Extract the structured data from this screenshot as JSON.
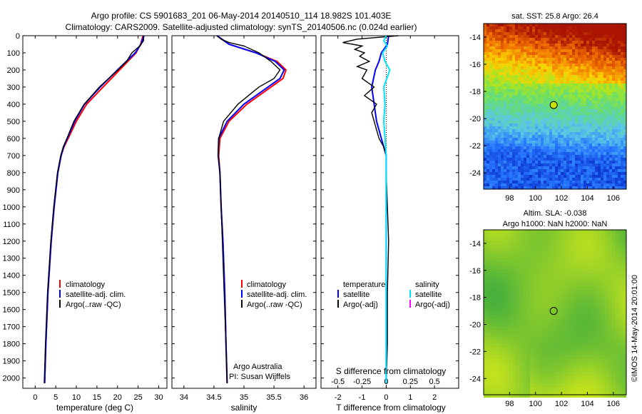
{
  "header": {
    "line1": "Argo profile: CS 5901683_201 06-May-2014 20140510_114 18.982S 101.403E",
    "line2": "Climatology: CARS2009. Satellite-adjusted climatology: synTS_20140506.nc (0.024d earlier)"
  },
  "chart_data": [
    {
      "type": "line",
      "xlabel": "temperature (deg C)",
      "ylabel": "",
      "xlim": [
        -3,
        32
      ],
      "ylim": [
        2060,
        0
      ],
      "xticks": [
        0,
        5,
        10,
        15,
        20,
        25,
        30
      ],
      "yticks": [
        0,
        100,
        200,
        300,
        400,
        500,
        600,
        700,
        800,
        900,
        1000,
        1100,
        1200,
        1300,
        1400,
        1500,
        1600,
        1700,
        1800,
        1900,
        2000
      ],
      "legend": [
        "climatology",
        "satellite-adj. clim.",
        "Argo(..raw -QC)"
      ],
      "series": [
        {
          "name": "climatology",
          "color": "#ff0000",
          "depth": [
            0,
            50,
            100,
            200,
            300,
            400,
            500,
            600,
            650,
            700,
            800,
            1000,
            1200,
            1500,
            1800,
            2030
          ],
          "values": [
            26.2,
            25.6,
            24.5,
            20.5,
            16.5,
            12.5,
            10.0,
            8.0,
            7.0,
            6.3,
            5.5,
            4.6,
            3.9,
            3.1,
            2.6,
            2.3
          ]
        },
        {
          "name": "satellite-adj. clim.",
          "color": "#0000ff",
          "depth": [
            0,
            50,
            100,
            200,
            300,
            400,
            500,
            600,
            650,
            700,
            800,
            1000,
            1200,
            1500,
            1800,
            2030
          ],
          "values": [
            26.4,
            25.7,
            24.3,
            20.0,
            15.8,
            12.0,
            9.6,
            7.8,
            6.9,
            6.3,
            5.5,
            4.6,
            3.9,
            3.1,
            2.6,
            2.3
          ]
        },
        {
          "name": "Argo(..raw -QC)",
          "color": "#000000",
          "depth": [
            0,
            30,
            60,
            100,
            150,
            200,
            300,
            400,
            500,
            600,
            650,
            700,
            800,
            1000,
            1200,
            1500,
            1800,
            2030
          ],
          "values": [
            26.4,
            26.3,
            25.4,
            23.5,
            22.2,
            20.1,
            15.6,
            11.9,
            9.4,
            7.7,
            6.8,
            6.2,
            5.4,
            4.5,
            3.8,
            3.0,
            2.5,
            2.2
          ]
        }
      ]
    },
    {
      "type": "line",
      "xlabel": "salinity",
      "ylabel": "",
      "xlim": [
        33.8,
        36.2
      ],
      "ylim": [
        2060,
        0
      ],
      "xticks": [
        34,
        34.5,
        35,
        35.5,
        36
      ],
      "legend": [
        "climatology",
        "satellite-adj. clim.",
        "Argo(..raw -QC)"
      ],
      "annotations": [
        "Argo Australia",
        "PI: Susan Wijffels"
      ],
      "series": [
        {
          "name": "climatology",
          "color": "#ff0000",
          "depth": [
            0,
            50,
            100,
            150,
            200,
            250,
            300,
            400,
            500,
            600,
            700,
            800,
            1000,
            1200,
            1500,
            1800,
            2030
          ],
          "values": [
            34.55,
            34.75,
            35.2,
            35.55,
            35.7,
            35.65,
            35.45,
            35.05,
            34.75,
            34.6,
            34.58,
            34.6,
            34.62,
            34.65,
            34.68,
            34.7,
            34.72
          ]
        },
        {
          "name": "satellite-adj. clim.",
          "color": "#0000ff",
          "depth": [
            0,
            50,
            100,
            150,
            200,
            250,
            300,
            400,
            500,
            600,
            700,
            800,
            1000,
            1200,
            1500,
            1800,
            2030
          ],
          "values": [
            34.55,
            34.75,
            35.2,
            35.52,
            35.67,
            35.6,
            35.4,
            35.0,
            34.72,
            34.58,
            34.57,
            34.6,
            34.62,
            34.65,
            34.68,
            34.7,
            34.72
          ]
        },
        {
          "name": "Argo(..raw -QC)",
          "color": "#000000",
          "depth": [
            0,
            20,
            40,
            60,
            100,
            150,
            200,
            250,
            300,
            400,
            500,
            600,
            700,
            800,
            1000,
            1200,
            1500,
            1800,
            2030
          ],
          "values": [
            34.55,
            34.62,
            34.75,
            35.0,
            35.25,
            35.45,
            35.6,
            35.5,
            35.25,
            34.9,
            34.66,
            34.58,
            34.57,
            34.6,
            34.62,
            34.64,
            34.67,
            34.7,
            34.72
          ]
        }
      ]
    },
    {
      "type": "line",
      "xlabel": "T difference from climatology",
      "top_xlabel": "S difference from climatology",
      "xlim": [
        -2.7,
        3.0
      ],
      "ylim": [
        2060,
        0
      ],
      "xticks": [
        -2,
        -1,
        0,
        1,
        2
      ],
      "top_xticks_label": [
        "-0.5",
        "-0.25",
        "0",
        "0.25",
        "0.5"
      ],
      "top_xticks_pos": [
        -2,
        -1,
        0,
        1,
        2
      ],
      "legend_left_title": "temperature",
      "legend_right_title": "salinity",
      "legend": [
        "satellite",
        "Argo(-adj)",
        "satellite",
        "Argo(-adj)"
      ],
      "series": [
        {
          "name": "temperature satellite",
          "color": "#0000ff",
          "depth": [
            0,
            50,
            100,
            150,
            200,
            300,
            400,
            500,
            600,
            700,
            800,
            1000,
            1500,
            2030
          ],
          "values": [
            0.1,
            0.05,
            -0.2,
            -0.3,
            -0.45,
            -0.6,
            -0.5,
            -0.4,
            -0.2,
            0.0,
            0.0,
            0.0,
            0.0,
            0.0
          ]
        },
        {
          "name": "temperature Argo(-adj)",
          "color": "#000000",
          "depth": [
            0,
            20,
            40,
            60,
            80,
            100,
            120,
            150,
            180,
            200,
            250,
            300,
            350,
            400,
            450,
            500,
            550,
            600,
            650,
            700,
            800,
            1000,
            1200,
            1500,
            1800,
            2030
          ],
          "values": [
            0.5,
            -1.2,
            -1.8,
            -1.0,
            -1.3,
            -0.9,
            -1.1,
            -0.7,
            -1.2,
            -0.8,
            -1.0,
            -0.5,
            -0.9,
            -0.4,
            -0.6,
            -0.5,
            -0.4,
            -0.3,
            -0.1,
            0.0,
            0.0,
            0.05,
            0.1,
            0.05,
            0.05,
            0.0
          ]
        },
        {
          "name": "salinity satellite",
          "color": "#00e5ff",
          "depth": [
            0,
            30,
            60,
            100,
            150,
            200,
            300,
            400,
            500,
            600,
            700,
            800,
            1000,
            1500,
            2030
          ],
          "values": [
            0.0,
            -0.1,
            0.05,
            -0.15,
            -0.05,
            0.15,
            -0.1,
            -0.05,
            -0.1,
            -0.05,
            0.0,
            0.0,
            0.0,
            0.0,
            0.0
          ]
        },
        {
          "name": "salinity Argo(-adj)",
          "color": "#ff00ff",
          "depth": [],
          "values": []
        }
      ]
    }
  ],
  "maps": {
    "sst": {
      "title": "sat. SST: 25.8 Argo: 26.4",
      "xticks": [
        "98",
        "100",
        "102",
        "104",
        "106"
      ],
      "yticks": [
        "-14",
        "-16",
        "-18",
        "-20",
        "-22",
        "-24"
      ],
      "lon_range": [
        96.0,
        107.0
      ],
      "lat_range": [
        -25.2,
        -13.0
      ],
      "marker": {
        "lon": 101.4,
        "lat": -19.0
      }
    },
    "sla": {
      "title_line1": "Altim. SLA: -0.038",
      "title_line2": "Argo h1000: NaN h2000: NaN",
      "xticks": [
        "98",
        "100",
        "102",
        "104",
        "106"
      ],
      "yticks": [
        "-14",
        "-16",
        "-18",
        "-20",
        "-22",
        "-24"
      ],
      "lon_range": [
        96.0,
        107.0
      ],
      "lat_range": [
        -25.2,
        -13.0
      ],
      "marker": {
        "lon": 101.4,
        "lat": -19.0
      }
    }
  },
  "footer": "©IMOS 14-May-2014 20:01:00"
}
